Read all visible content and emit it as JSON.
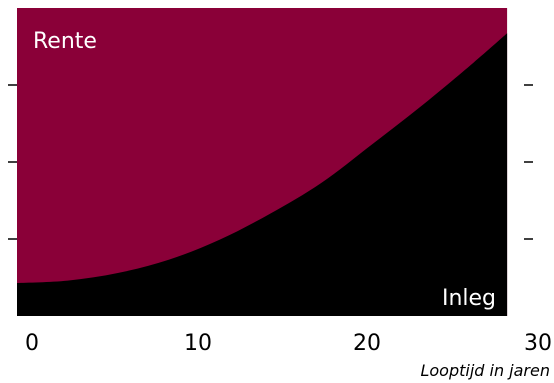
{
  "chart_data": {
    "type": "area",
    "title": "",
    "xlabel": "Looptijd in jaren",
    "ylabel": "",
    "xlim": [
      0,
      30
    ],
    "ylim": [
      0,
      1
    ],
    "x_ticks": [
      "0",
      "10",
      "20",
      "30"
    ],
    "y_ticks_count": 3,
    "grid": false,
    "legend": "none",
    "series": [
      {
        "name": "Inleg",
        "color": "#000000",
        "x": [
          0,
          3,
          6,
          9,
          12,
          15,
          18,
          21,
          24,
          27,
          29
        ],
        "values": [
          0.107,
          0.115,
          0.14,
          0.183,
          0.248,
          0.333,
          0.432,
          0.557,
          0.685,
          0.822,
          0.918
        ]
      },
      {
        "name": "Rente",
        "color": "#8a0038",
        "x": [
          0,
          29
        ],
        "values": [
          1,
          1
        ],
        "fill_to": "Inleg"
      }
    ],
    "area_labels": {
      "top": "Rente",
      "bottom": "Inleg"
    }
  }
}
